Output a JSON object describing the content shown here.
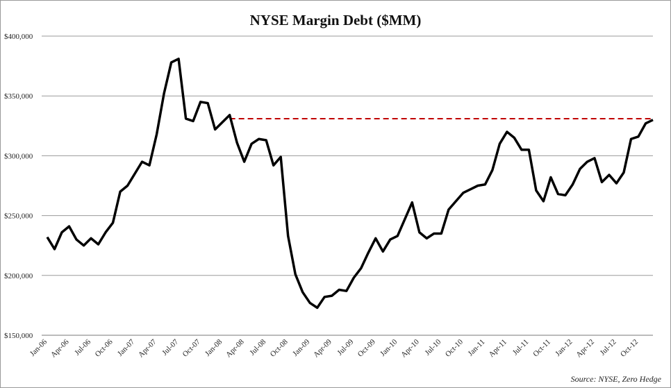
{
  "chart_data": {
    "type": "line",
    "title": "NYSE Margin Debt ($MM)",
    "categories": [
      "Jan-06",
      null,
      null,
      "Apr-06",
      null,
      null,
      "Jul-06",
      null,
      null,
      "Oct-06",
      null,
      null,
      "Jan-07",
      null,
      null,
      "Apr-07",
      null,
      null,
      "Jul-07",
      null,
      null,
      "Oct-07",
      null,
      null,
      "Jan-08",
      null,
      null,
      "Apr-08",
      null,
      null,
      "Jul-08",
      null,
      null,
      "Oct-08",
      null,
      null,
      "Jan-09",
      null,
      null,
      "Apr-09",
      null,
      null,
      "Jul-09",
      null,
      null,
      "Oct-09",
      null,
      null,
      "Jan-10",
      null,
      null,
      "Apr-10",
      null,
      null,
      "Jul-10",
      null,
      null,
      "Oct-10",
      null,
      null,
      "Jan-11",
      null,
      null,
      "Apr-11",
      null,
      null,
      "Jul-11",
      null,
      null,
      "Oct-11",
      null,
      null,
      "Jan-12",
      null,
      null,
      "Apr-12",
      null,
      null,
      "Jul-12",
      null,
      null,
      "Oct-12",
      null,
      null
    ],
    "series": [
      {
        "color": "#000000",
        "values": [
          232000,
          222000,
          236000,
          241000,
          230000,
          225000,
          231000,
          226000,
          236000,
          244000,
          270000,
          275000,
          285000,
          295000,
          292000,
          318000,
          352000,
          378000,
          381000,
          331000,
          329000,
          345000,
          344000,
          322000,
          328000,
          334000,
          311000,
          295000,
          310000,
          314000,
          313000,
          292000,
          299000,
          233000,
          201000,
          186000,
          177000,
          173000,
          182000,
          183000,
          188000,
          187000,
          198000,
          206000,
          219000,
          231000,
          220000,
          230000,
          233000,
          247000,
          261000,
          236000,
          231000,
          235000,
          235000,
          255000,
          262000,
          269000,
          272000,
          275000,
          276000,
          288000,
          310000,
          320000,
          315000,
          305000,
          305000,
          271000,
          262000,
          282000,
          268000,
          267000,
          276000,
          289000,
          295000,
          298000,
          278000,
          284000,
          277000,
          286000,
          314000,
          316000,
          327000,
          330000
        ]
      }
    ],
    "reference_line": {
      "value": 331000,
      "color": "#c00000",
      "dashed": true
    },
    "ylim": [
      150000,
      400000
    ],
    "yticks": [
      {
        "value": 150000,
        "label": "$150,000"
      },
      {
        "value": 200000,
        "label": "$200,000"
      },
      {
        "value": 250000,
        "label": "$250,000"
      },
      {
        "value": 300000,
        "label": "$300,000"
      },
      {
        "value": 350000,
        "label": "$350,000"
      },
      {
        "value": 400000,
        "label": "$400,000"
      }
    ],
    "grid": true,
    "source": "Source: NYSE, Zero Hedge"
  }
}
